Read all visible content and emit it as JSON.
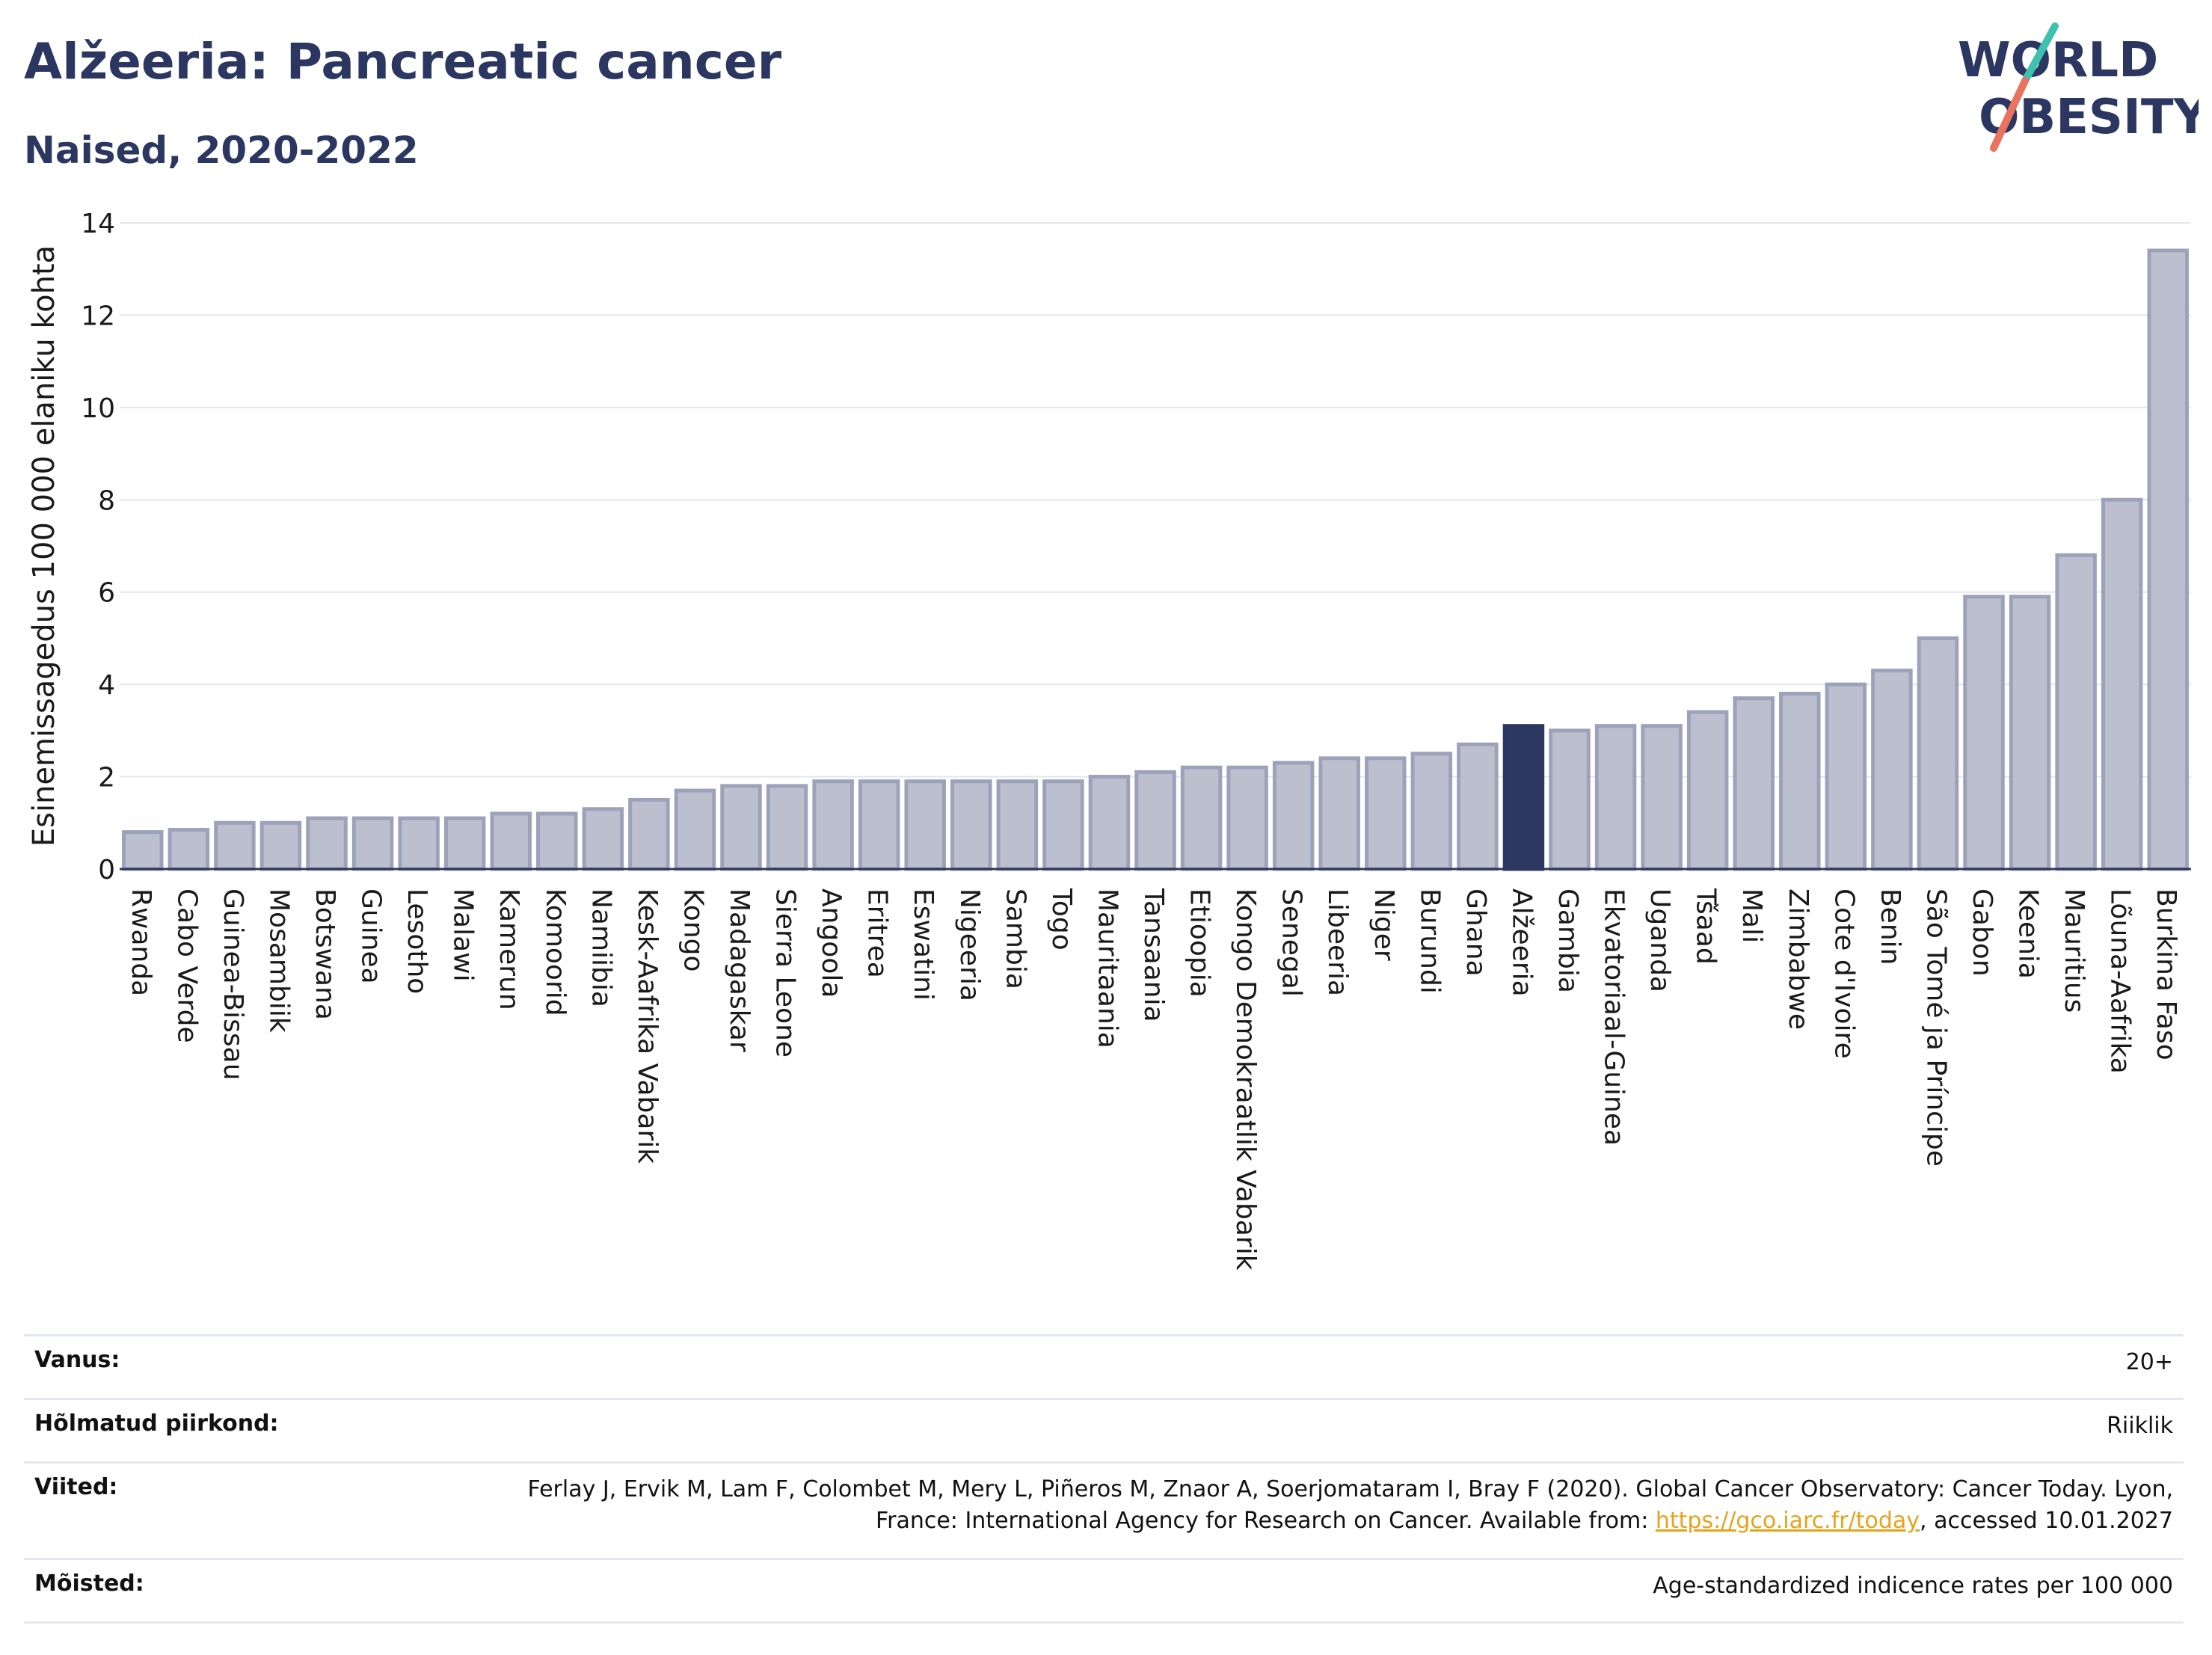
{
  "header": {
    "title": "Alžeeria: Pancreatic cancer",
    "subtitle": "Naised, 2020-2022"
  },
  "logo": {
    "line1": "WORLD",
    "line2": "OBESITY"
  },
  "colors": {
    "highlight": "#2b3760",
    "bar_fill": "#bcc0ce",
    "bar_stroke": "#9ca2ba",
    "logo_teal": "#3fc1b0",
    "logo_coral": "#e9735f"
  },
  "chart_data": {
    "type": "bar",
    "ylabel": "Esinemissagedus 100 000 elaniku kohta",
    "ylim": [
      0,
      14
    ],
    "yticks": [
      0,
      2,
      4,
      6,
      8,
      10,
      12,
      14
    ],
    "grid": true,
    "highlight": "Alžeeria",
    "categories": [
      "Rwanda",
      "Cabo Verde",
      "Guinea-Bissau",
      "Mosambiik",
      "Botswana",
      "Guinea",
      "Lesotho",
      "Malawi",
      "Kamerun",
      "Komoorid",
      "Namiibia",
      "Kesk-Aafrika Vabarik",
      "Kongo",
      "Madagaskar",
      "Sierra Leone",
      "Angoola",
      "Eritrea",
      "Eswatini",
      "Nigeeria",
      "Sambia",
      "Togo",
      "Mauritaania",
      "Tansaania",
      "Etioopia",
      "Kongo Demokraatlik Vabarik",
      "Senegal",
      "Libeeria",
      "Niger",
      "Burundi",
      "Ghana",
      "Alžeeria",
      "Gambia",
      "Ekvatoriaal-Guinea",
      "Uganda",
      "Tšaad",
      "Mali",
      "Zimbabwe",
      "Cote d'Ivoire",
      "Benin",
      "São Tomé ja Príncipe",
      "Gabon",
      "Keenia",
      "Mauritius",
      "Lõuna-Aafrika",
      "Burkina Faso"
    ],
    "values": [
      0.8,
      0.85,
      1.0,
      1.0,
      1.1,
      1.1,
      1.1,
      1.1,
      1.2,
      1.2,
      1.3,
      1.5,
      1.7,
      1.8,
      1.8,
      1.9,
      1.9,
      1.9,
      1.9,
      1.9,
      1.9,
      2.0,
      2.1,
      2.2,
      2.2,
      2.3,
      2.4,
      2.4,
      2.5,
      2.7,
      3.1,
      3.0,
      3.1,
      3.1,
      3.4,
      3.7,
      3.8,
      4.0,
      4.3,
      5.0,
      5.9,
      5.9,
      6.8,
      8.0,
      13.4
    ]
  },
  "info": {
    "age_label": "Vanus:",
    "age_value": "20+",
    "region_label": "Hõlmatud piirkond:",
    "region_value": "Riiklik",
    "refs_label": "Viited:",
    "refs_text": "Ferlay J, Ervik M, Lam F, Colombet M, Mery L, Piñeros M, Znaor A, Soerjomataram I, Bray F (2020). Global Cancer Observatory: Cancer Today. Lyon, France: International Agency for Research on Cancer. Available from:",
    "refs_link": "https://gco.iarc.fr/today",
    "refs_suffix": ", accessed 10.01.2027",
    "definitions_label": "Mõisted:",
    "definitions_value": "Age-standardized indicence rates per 100 000"
  }
}
